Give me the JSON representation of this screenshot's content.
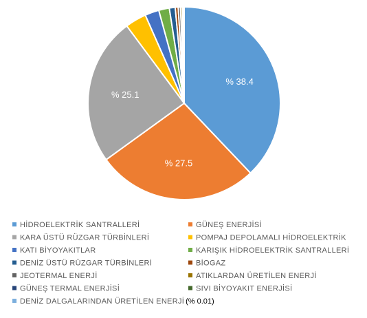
{
  "chart_data": {
    "type": "pie",
    "title": "",
    "slices": [
      {
        "name": "HİDROELEKTRİK SANTRALLERİ",
        "value": 38.4,
        "label": "% 38.4",
        "color": "#5B9BD5"
      },
      {
        "name": "GÜNEŞ ENERJİSİ",
        "value": 27.5,
        "label": "% 27.5",
        "color": "#ED7D31"
      },
      {
        "name": "KARA ÜSTÜ RÜZGAR TÜRBİNLERİ",
        "value": 25.1,
        "label": "% 25.1",
        "color": "#A5A5A5"
      },
      {
        "name": "POMPAJ DEPOLAMALI HİDROELEKTRİK",
        "value": 3.6,
        "label": "",
        "color": "#FFC000"
      },
      {
        "name": "KATI BİYOYAKITLAR",
        "value": 2.4,
        "label": "",
        "color": "#4472C4"
      },
      {
        "name": "KARIŞIK HİDROELEKTRİK SANTRALLERİ",
        "value": 1.8,
        "label": "",
        "color": "#70AD47"
      },
      {
        "name": "DENİZ ÜSTÜ RÜZGAR TÜRBİNLERİ",
        "value": 1.0,
        "label": "",
        "color": "#255E91"
      },
      {
        "name": "BİOGAZ",
        "value": 0.5,
        "label": "",
        "color": "#9E480E"
      },
      {
        "name": "JEOTERMAL ENERJİ",
        "value": 0.4,
        "label": "",
        "color": "#636363"
      },
      {
        "name": "ATIKLARDAN ÜRETİLEN ENERJİ",
        "value": 0.3,
        "label": "",
        "color": "#997300"
      },
      {
        "name": "GÜNEŞ TERMAL ENERJİSİ",
        "value": 0.2,
        "label": "",
        "color": "#264478"
      },
      {
        "name": "SIVI BİYOYAKIT ENERJİSİ",
        "value": 0.1,
        "label": "",
        "color": "#43682B"
      },
      {
        "name": "DENİZ DALGALARINDAN ÜRETİLEN ENERJİ",
        "value": 0.01,
        "label": "",
        "color": "#7CAFDD"
      }
    ],
    "legend_note": "(% 0.01)",
    "legend_position": "bottom"
  }
}
